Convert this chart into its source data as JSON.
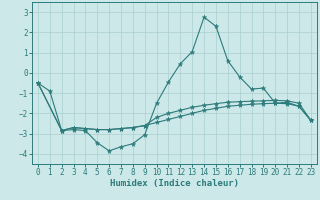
{
  "xlabel": "Humidex (Indice chaleur)",
  "bg_color": "#cce8e8",
  "line_color": "#2d7b7b",
  "grid_color": "#aacfcf",
  "xlim": [
    -0.5,
    23.5
  ],
  "ylim": [
    -4.5,
    3.5
  ],
  "yticks": [
    -4,
    -3,
    -2,
    -1,
    0,
    1,
    2,
    3
  ],
  "xticks": [
    0,
    1,
    2,
    3,
    4,
    5,
    6,
    7,
    8,
    9,
    10,
    11,
    12,
    13,
    14,
    15,
    16,
    17,
    18,
    19,
    20,
    21,
    22,
    23
  ],
  "line1_x": [
    0,
    1,
    2,
    3,
    4,
    5,
    6,
    7,
    8,
    9,
    10,
    11,
    12,
    13,
    14,
    15,
    16,
    17,
    18,
    19,
    20,
    21,
    22,
    23
  ],
  "line1_y": [
    -0.5,
    -0.9,
    -2.85,
    -2.8,
    -2.85,
    -3.45,
    -3.85,
    -3.65,
    -3.5,
    -3.05,
    -1.5,
    -0.45,
    0.45,
    1.05,
    2.75,
    2.3,
    0.6,
    -0.2,
    -0.8,
    -0.75,
    -1.5,
    -1.45,
    -1.65,
    -2.35
  ],
  "line2_x": [
    0,
    2,
    3,
    4,
    5,
    6,
    7,
    8,
    9,
    10,
    11,
    12,
    13,
    14,
    15,
    16,
    17,
    18,
    19,
    20,
    21,
    22,
    23
  ],
  "line2_y": [
    -0.5,
    -2.85,
    -2.7,
    -2.75,
    -2.8,
    -2.8,
    -2.75,
    -2.7,
    -2.6,
    -2.45,
    -2.3,
    -2.15,
    -2.0,
    -1.85,
    -1.75,
    -1.65,
    -1.6,
    -1.55,
    -1.52,
    -1.5,
    -1.52,
    -1.65,
    -2.35
  ],
  "line3_x": [
    0,
    2,
    3,
    4,
    5,
    6,
    7,
    8,
    9,
    10,
    11,
    12,
    13,
    14,
    15,
    16,
    17,
    18,
    19,
    20,
    21,
    22,
    23
  ],
  "line3_y": [
    -0.5,
    -2.85,
    -2.7,
    -2.75,
    -2.8,
    -2.8,
    -2.75,
    -2.7,
    -2.6,
    -2.2,
    -2.0,
    -1.85,
    -1.7,
    -1.6,
    -1.52,
    -1.45,
    -1.42,
    -1.4,
    -1.38,
    -1.36,
    -1.38,
    -1.5,
    -2.35
  ]
}
